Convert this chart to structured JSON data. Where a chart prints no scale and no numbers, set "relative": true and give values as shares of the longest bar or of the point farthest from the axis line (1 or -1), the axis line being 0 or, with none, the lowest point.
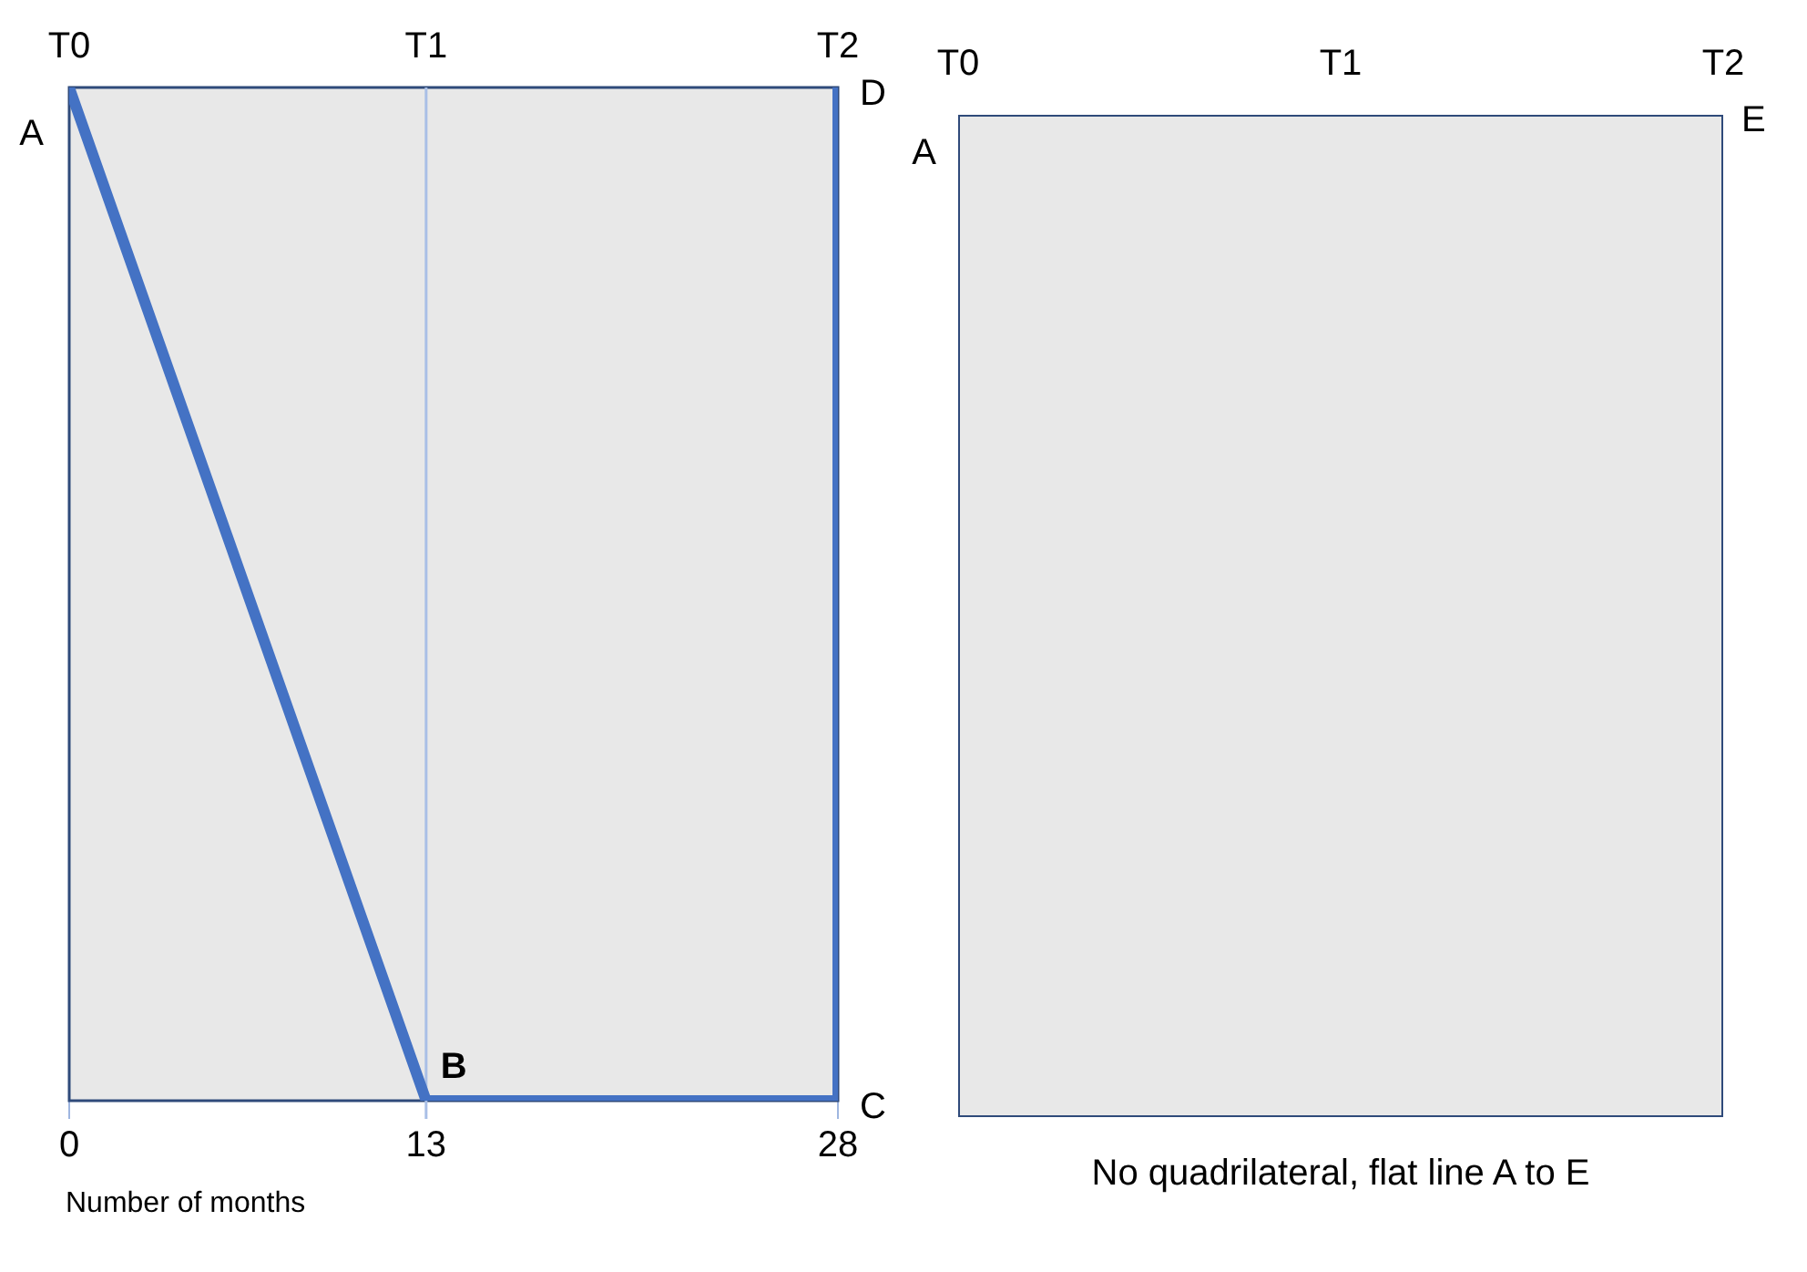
{
  "chart_data": [
    {
      "type": "line",
      "xlabel": "Number of months",
      "relative": true,
      "xlim": [
        0,
        28
      ],
      "xticks": [
        0,
        13,
        28
      ],
      "legend": false,
      "marker": "none",
      "line_style": "solid",
      "series": [
        {
          "color": "#4472c4",
          "x": [
            0,
            13,
            28,
            28
          ],
          "values": [
            1,
            0,
            0,
            1
          ]
        }
      ],
      "ref_lines": [
        {
          "axis": "x",
          "value": 13,
          "color": "#a9bfe6"
        }
      ],
      "annotations": [
        {
          "text": "T0",
          "x": 0,
          "y": 1
        },
        {
          "text": "A",
          "x": 0,
          "y": 1
        },
        {
          "text": "T1",
          "x": 13,
          "y": 1
        },
        {
          "text": "T2",
          "x": 28,
          "y": 1
        },
        {
          "text": "D",
          "x": 28,
          "y": 1
        },
        {
          "text": "B",
          "x": 13,
          "y": 0
        },
        {
          "text": "C",
          "x": 28,
          "y": 0
        }
      ]
    },
    {
      "type": "other",
      "xlabel": "No quadrilateral, flat line A to E",
      "categories": [
        "T0",
        "T1",
        "T2"
      ],
      "annotations": [
        "A",
        "E"
      ]
    }
  ]
}
